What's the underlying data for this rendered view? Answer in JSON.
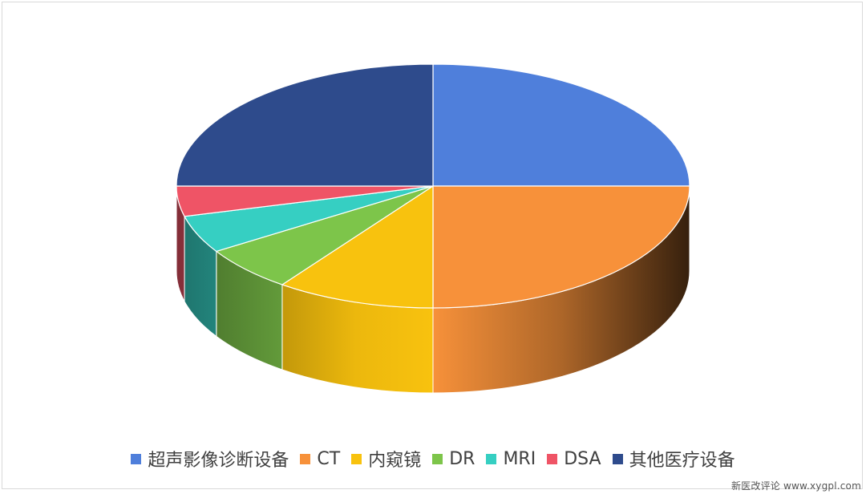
{
  "chart_data": {
    "type": "pie",
    "style": "3d",
    "title": "",
    "legend_position": "bottom",
    "slices": [
      {
        "name": "超声影像诊断设备",
        "value": 25,
        "color": "#4F7FDB"
      },
      {
        "name": "CT",
        "value": 25,
        "color": "#F7913A"
      },
      {
        "name": "内窥镜",
        "value": 10,
        "color": "#F8C20E"
      },
      {
        "name": "DR",
        "value": 6,
        "color": "#7DC54A"
      },
      {
        "name": "MRI",
        "value": 5,
        "color": "#36CFC2"
      },
      {
        "name": "DSA",
        "value": 4,
        "color": "#EF5466"
      },
      {
        "name": "其他医疗设备",
        "value": 25,
        "color": "#2E4B8C"
      }
    ]
  },
  "watermark": "新医改评论 www.xygpl.com"
}
